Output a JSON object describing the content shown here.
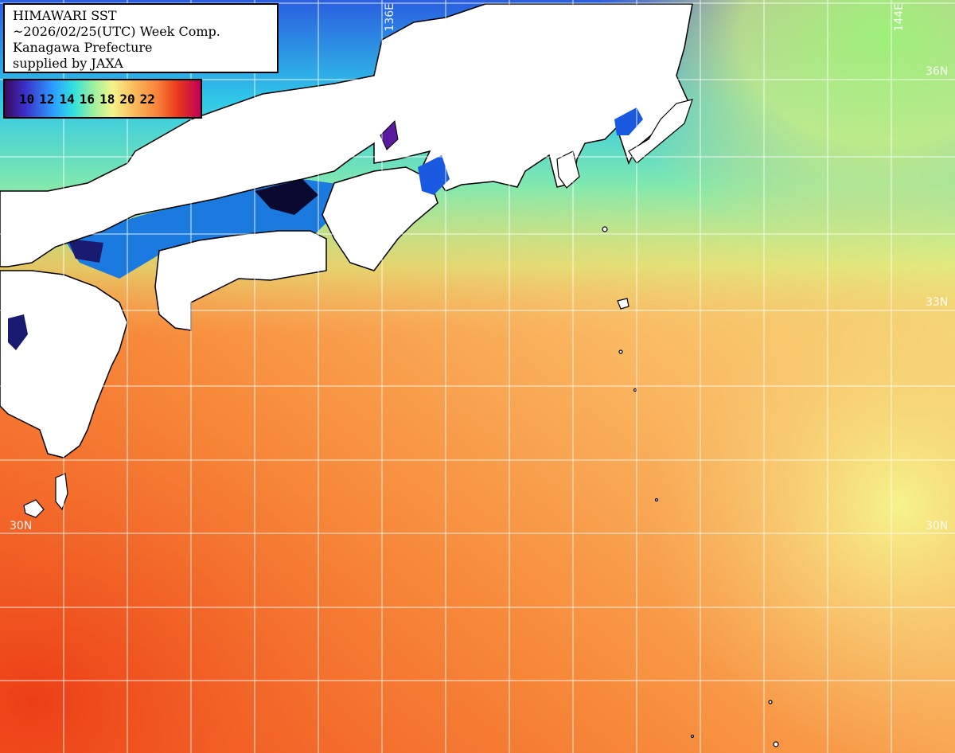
{
  "header": {
    "line1": "HIMAWARI SST",
    "line2": "~2026/02/25(UTC) Week Comp.",
    "line3": "Kanagawa Prefecture",
    "line4": "supplied by JAXA"
  },
  "legend": {
    "labels": [
      "10",
      "12",
      "14",
      "16",
      "18",
      "20",
      "22"
    ],
    "colors": [
      "#3a0a5a",
      "#3c2cc8",
      "#2aa0ff",
      "#30e0e0",
      "#9af0a0",
      "#f4f48a",
      "#fbc060",
      "#f8823a",
      "#ea3a1a",
      "#c00058"
    ]
  },
  "grid_labels": {
    "lon_136": "136E",
    "lon_144": "144E",
    "lat_36": "36N",
    "lat_33": "33N",
    "lat_30_left": "30N",
    "lat_30_right": "30N"
  },
  "colors": {
    "land": "#ffffff",
    "coast": "#000000",
    "gridline": "#ffffff",
    "sea_warm": "#f4622a",
    "sea_mid": "#f8b060",
    "sea_cool": "#3ad0d8"
  }
}
